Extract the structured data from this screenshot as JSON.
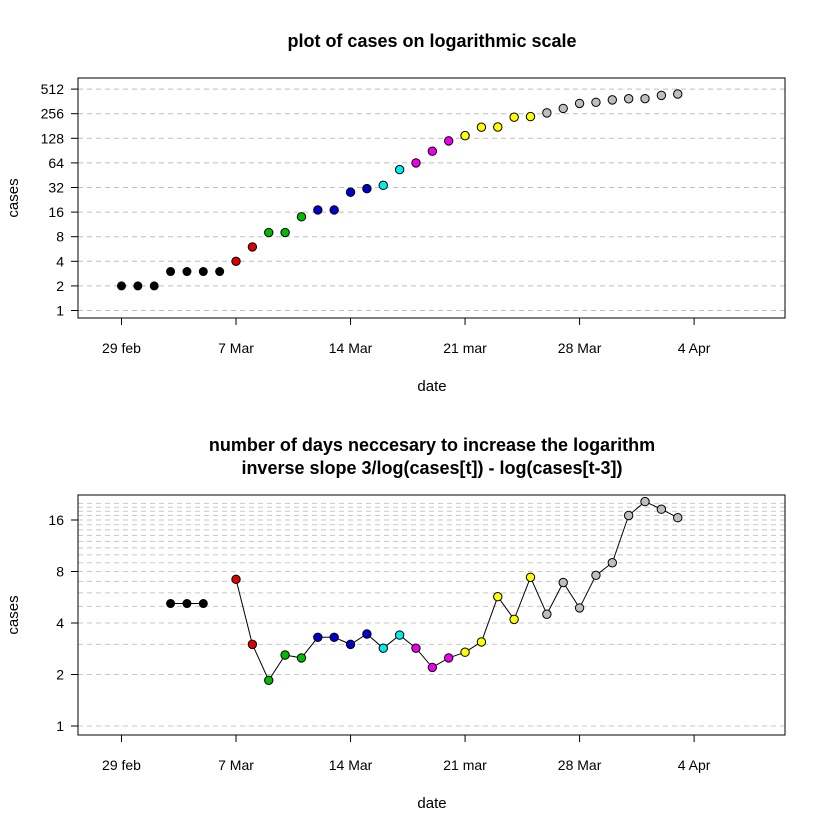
{
  "chart_data": [
    {
      "type": "scatter",
      "title": "plot of cases on logarithmic scale",
      "xlabel": "date",
      "ylabel": "cases",
      "x_ticks": [
        "29 feb",
        "7 Mar",
        "14 Mar",
        "21 mar",
        "28 Mar",
        "4 Apr"
      ],
      "y_ticks": [
        "1",
        "2",
        "4",
        "8",
        "16",
        "32",
        "64",
        "128",
        "256",
        "512"
      ],
      "y_scale": "log2",
      "ylim": [
        1,
        512
      ],
      "grid": "horizontal dashed",
      "dates": [
        "29 feb",
        "1 Mar",
        "2 Mar",
        "3 Mar",
        "4 Mar",
        "5 Mar",
        "6 Mar",
        "7 Mar",
        "8 Mar",
        "9 Mar",
        "10 Mar",
        "11 Mar",
        "12 Mar",
        "13 Mar",
        "14 Mar",
        "15 Mar",
        "16 Mar",
        "17 Mar",
        "18 Mar",
        "19 Mar",
        "20 Mar",
        "21 Mar",
        "22 Mar",
        "23 Mar",
        "24 Mar",
        "25 Mar",
        "26 Mar",
        "27 Mar",
        "28 Mar",
        "29 Mar",
        "30 Mar",
        "31 Mar",
        "1 Apr",
        "2 Apr",
        "3 Apr"
      ],
      "values": [
        2,
        2,
        2,
        3,
        3,
        3,
        3,
        4,
        6,
        9,
        9,
        14,
        17,
        17,
        28,
        31,
        34,
        53,
        64,
        89,
        119,
        138,
        175,
        176,
        232,
        236,
        262,
        297,
        342,
        353,
        378,
        390,
        391,
        429,
        446
      ],
      "colors": [
        "#000000",
        "#000000",
        "#000000",
        "#000000",
        "#000000",
        "#000000",
        "#000000",
        "#dd0000",
        "#dd0000",
        "#00bb00",
        "#00bb00",
        "#00bb00",
        "#0000cc",
        "#0000cc",
        "#0000cc",
        "#0000cc",
        "#00eeee",
        "#00eeee",
        "#ee00ee",
        "#ee00ee",
        "#ee00ee",
        "#ffff00",
        "#ffff00",
        "#ffff00",
        "#ffff00",
        "#ffff00",
        "#bebebe",
        "#bebebe",
        "#bebebe",
        "#bebebe",
        "#bebebe",
        "#bebebe",
        "#bebebe",
        "#bebebe",
        "#bebebe"
      ]
    },
    {
      "type": "line",
      "title": "number of days neccesary to increase the logarithm",
      "subtitle": "inverse slope 3/log(cases[t]) - log(cases[t-3])",
      "xlabel": "date",
      "ylabel": "cases",
      "x_ticks": [
        "29 feb",
        "7 Mar",
        "14 Mar",
        "21 mar",
        "28 Mar",
        "4 Apr"
      ],
      "y_ticks": [
        "1",
        "2",
        "4",
        "8",
        "16"
      ],
      "y_scale": "log2",
      "ylim": [
        0.9,
        21
      ],
      "grid": "horizontal dashed",
      "dates": [
        "3 Mar",
        "4 Mar",
        "5 Mar",
        "7 Mar",
        "8 Mar",
        "9 Mar",
        "10 Mar",
        "11 Mar",
        "12 Mar",
        "13 Mar",
        "14 Mar",
        "15 Mar",
        "16 Mar",
        "17 Mar",
        "18 Mar",
        "19 Mar",
        "20 Mar",
        "21 Mar",
        "22 Mar",
        "23 Mar",
        "24 Mar",
        "25 Mar",
        "26 Mar",
        "27 Mar",
        "28 Mar",
        "29 Mar",
        "30 Mar",
        "31 Mar",
        "1 Apr",
        "2 Apr",
        "3 Apr"
      ],
      "segment_start": [
        true,
        false,
        false,
        true,
        false,
        false,
        false,
        false,
        false,
        false,
        false,
        false,
        false,
        false,
        false,
        false,
        false,
        false,
        false,
        false,
        false,
        false,
        false,
        false,
        false,
        false,
        false,
        false,
        false,
        false,
        false
      ],
      "values": [
        5.2,
        5.2,
        5.2,
        7.2,
        3.0,
        1.85,
        2.6,
        2.5,
        3.3,
        3.3,
        3.0,
        3.45,
        2.85,
        3.4,
        2.85,
        2.2,
        2.5,
        2.7,
        3.1,
        5.7,
        4.2,
        7.4,
        4.5,
        6.9,
        4.9,
        7.6,
        9.0,
        17.0,
        20.5,
        18.5,
        16.5
      ],
      "colors": [
        "#000000",
        "#000000",
        "#000000",
        "#dd0000",
        "#dd0000",
        "#00bb00",
        "#00bb00",
        "#00bb00",
        "#0000cc",
        "#0000cc",
        "#0000cc",
        "#0000cc",
        "#00eeee",
        "#00eeee",
        "#ee00ee",
        "#ee00ee",
        "#ee00ee",
        "#ffff00",
        "#ffff00",
        "#ffff00",
        "#ffff00",
        "#ffff00",
        "#bebebe",
        "#bebebe",
        "#bebebe",
        "#bebebe",
        "#bebebe",
        "#bebebe",
        "#bebebe",
        "#bebebe",
        "#bebebe"
      ]
    }
  ]
}
